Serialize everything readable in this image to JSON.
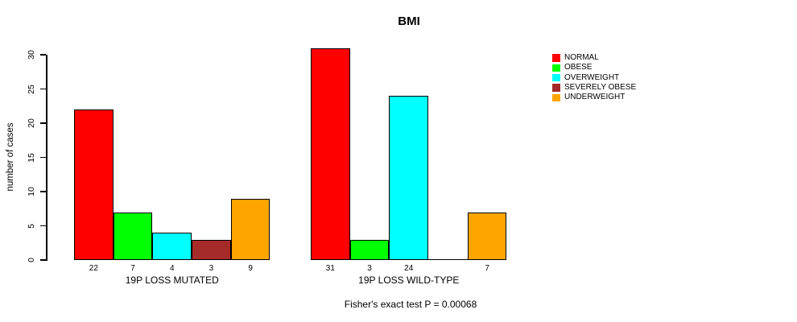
{
  "title": "BMI",
  "ylabel": "number of cases",
  "footnote": "Fisher's exact test P = 0.00068",
  "chart_data": {
    "type": "bar",
    "title": "BMI",
    "xlabel": "",
    "ylabel": "number of cases",
    "categories": [
      "NORMAL",
      "OBESE",
      "OVERWEIGHT",
      "SEVERELY OBESE",
      "UNDERWEIGHT"
    ],
    "category_colors": [
      "#ff0000",
      "#00ff00",
      "#00ffff",
      "#a52a2a",
      "#ffa500"
    ],
    "groups": [
      {
        "label": "19P LOSS MUTATED",
        "values": [
          22,
          7,
          4,
          3,
          9
        ],
        "bar_labels": [
          "22",
          "7",
          "4",
          "3",
          "9"
        ]
      },
      {
        "label": "19P LOSS WILD-TYPE",
        "values": [
          31,
          3,
          24,
          0,
          7
        ],
        "bar_labels": [
          "31",
          "3",
          "24",
          "",
          "7"
        ]
      }
    ],
    "yticks": [
      0,
      5,
      10,
      15,
      20,
      25,
      30
    ],
    "ylim": [
      0,
      31
    ],
    "grid": false,
    "legend_position": "right",
    "annotation": "Fisher's exact test P = 0.00068"
  }
}
